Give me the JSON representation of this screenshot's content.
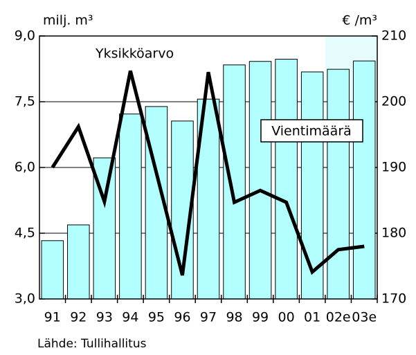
{
  "chart_data": {
    "type": "bar_line",
    "y_label": "milj. m³",
    "y2_label": "€ /m³",
    "source": "Lähde: Tullihallitus",
    "categories": [
      "91",
      "92",
      "93",
      "94",
      "95",
      "96",
      "97",
      "98",
      "99",
      "00",
      "01",
      "02e",
      "03e"
    ],
    "series": [
      {
        "name": "Vientimäärä",
        "type": "bar",
        "color": "#b3ffff",
        "values": [
          4.33,
          4.69,
          6.22,
          7.22,
          7.39,
          7.06,
          7.56,
          8.34,
          8.42,
          8.47,
          8.18,
          8.24,
          8.43
        ]
      },
      {
        "name": "Yksikköarvo",
        "type": "line",
        "axis": "y2",
        "color": "#000000",
        "values": [
          190,
          196.2,
          184.8,
          204.7,
          189.2,
          173.6,
          204.5,
          184.7,
          186.5,
          184.7,
          174.1,
          177.5,
          178
        ]
      }
    ],
    "ylim": [
      3,
      9
    ],
    "yticks": [
      {
        "value": 3,
        "label": "3,0"
      },
      {
        "value": 4.5,
        "label": "4,5"
      },
      {
        "value": 6,
        "label": "6,0"
      },
      {
        "value": 7.5,
        "label": "7,5"
      },
      {
        "value": 9,
        "label": "9,0"
      }
    ],
    "y2lim": [
      170,
      210
    ],
    "y2ticks": [
      170,
      180,
      190,
      200,
      210
    ],
    "grid": true
  }
}
